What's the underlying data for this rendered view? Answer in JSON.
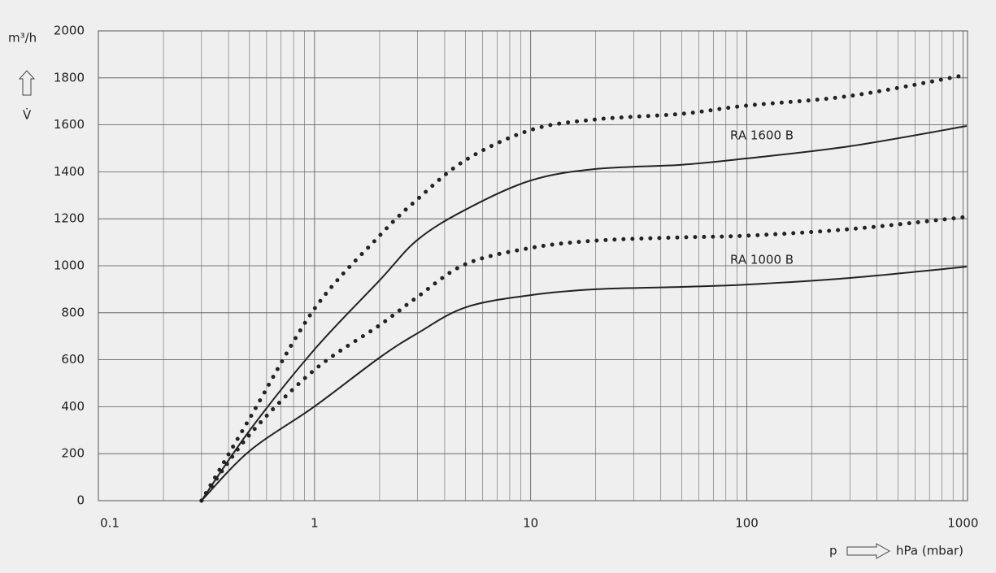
{
  "chart_data": {
    "type": "line",
    "y_label": "m³/h",
    "y_symbol": "V̇",
    "x_symbol": "p",
    "x_label": "hPa (mbar)",
    "x": [
      0.3,
      0.5,
      1,
      2,
      3,
      5,
      10,
      20,
      50,
      100,
      300,
      1040
    ],
    "series": [
      {
        "color": "#222222",
        "style": "dotted",
        "values": [
          0,
          349,
          817,
          1128,
          1284,
          1450,
          1578,
          1623,
          1647,
          1682,
          1723,
          1813
        ]
      },
      {
        "color": "#222222",
        "style": "solid",
        "values": [
          0,
          298,
          644,
          938,
          1111,
          1239,
          1363,
          1412,
          1430,
          1457,
          1509,
          1595
        ]
      },
      {
        "color": "#222222",
        "style": "dotted",
        "values": [
          0,
          280,
          557,
          747,
          868,
          1007,
          1076,
          1107,
          1121,
          1128,
          1156,
          1208
        ]
      },
      {
        "color": "#222222",
        "style": "solid",
        "values": [
          0,
          211,
          401,
          609,
          713,
          823,
          875,
          900,
          910,
          920,
          948,
          996
        ]
      }
    ],
    "annotations": [
      "RA 1600 B",
      "RA 1000 B"
    ],
    "xscale": "log",
    "xlim": [
      0.1,
      1050
    ],
    "xticks": [
      0.1,
      1,
      10,
      100,
      1000
    ],
    "ylim": [
      0,
      2000
    ],
    "yticks": [
      0,
      200,
      400,
      600,
      800,
      1000,
      1200,
      1400,
      1600,
      1800,
      2000
    ],
    "grid": true,
    "minor_grid": true
  }
}
